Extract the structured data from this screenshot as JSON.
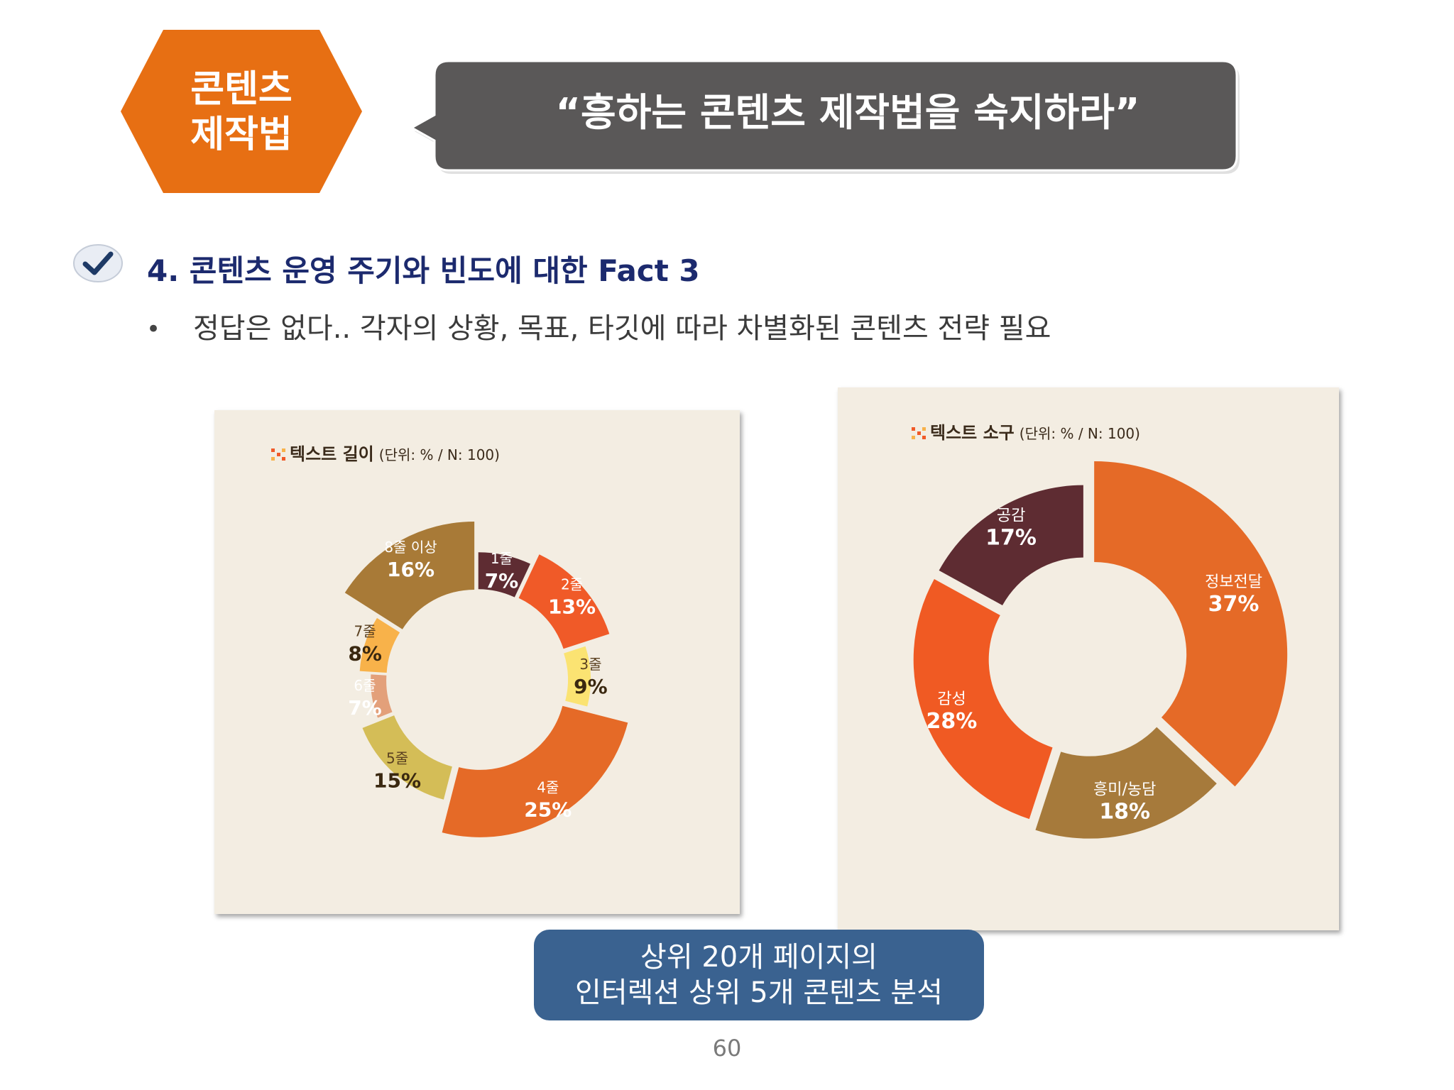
{
  "badge": {
    "line1": "콘텐츠",
    "line2": "제작법",
    "color": "#e76f13"
  },
  "headline": "“흥하는 콘텐츠 제작법을 숙지하라”",
  "section": {
    "title": "4. 콘텐츠 운영 주기와 빈도에 대한 Fact 3",
    "bullet": "정답은 없다.. 각자의 상황, 목표, 타깃에 따라 차별화된 콘텐츠 전략 필요"
  },
  "chart_data": [
    {
      "type": "pie",
      "title": "텍스트 길이",
      "subtitle": "(단위: % / N: 100)",
      "categories": [
        "1줄",
        "2줄",
        "3줄",
        "4줄",
        "5줄",
        "6줄",
        "7줄",
        "8줄 이상"
      ],
      "values": [
        7,
        13,
        9,
        25,
        15,
        7,
        8,
        16
      ],
      "value_labels": [
        "7%",
        "13%",
        "9%",
        "25%",
        "15%",
        "7%",
        "8%",
        "16%"
      ],
      "colors": [
        "#5e2c32",
        "#f05a28",
        "#fbe372",
        "#e56a27",
        "#d4bd57",
        "#e3a07a",
        "#f8b24a",
        "#a87a37"
      ],
      "donut": true
    },
    {
      "type": "pie",
      "title": "텍스트 소구",
      "subtitle": "(단위: % / N: 100)",
      "categories": [
        "정보전달",
        "흥미/농담",
        "감성",
        "공감"
      ],
      "values": [
        37,
        18,
        28,
        17
      ],
      "value_labels": [
        "37%",
        "18%",
        "28%",
        "17%"
      ],
      "colors": [
        "#e56a27",
        "#a67a3b",
        "#f05a23",
        "#5e2c32"
      ],
      "donut": true
    }
  ],
  "summary": {
    "line1": "상위 20개 페이지의",
    "line2": "인터렉션 상위 5개 콘텐츠 분석"
  },
  "page_number": "60"
}
